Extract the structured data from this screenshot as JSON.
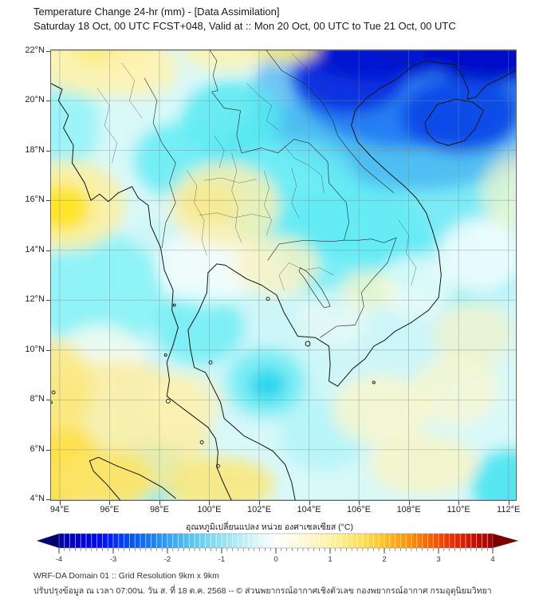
{
  "header": {
    "title": "Temperature Change 24-hr (mm) - [Data Assimilation]",
    "subtitle": "Saturday 18 Oct, 00 UTC FCST+048, Valid at :: Mon 20 Oct, 00 UTC to Tue 21 Oct, 00 UTC"
  },
  "footer": {
    "line1": "WRF-DA Domain 01 :: Grid Resolution 9km x 9km",
    "line2": "ปรับปรุงข้อมูล ณ เวลา 07:00น. วัน ส. ที่ 18 ต.ค. 2568 -- © ส่วนพยากรณ์อากาศเชิงตัวเลข กองพยากรณ์อากาศ กรมอุตุนิยมวิทยา"
  },
  "chart_data": {
    "type": "heatmap",
    "title": "Temperature Change 24-hr (mm) - [Data Assimilation]",
    "subtitle": "Saturday 18 Oct, 00 UTC FCST+048, Valid at :: Mon 20 Oct, 00 UTC to Tue 21 Oct, 00 UTC",
    "grid": true,
    "base_color": "#d8f8f9",
    "x_axis": {
      "label": "longitude",
      "suffix": "°E",
      "ticks": [
        94,
        96,
        98,
        100,
        102,
        104,
        106,
        108,
        110,
        112
      ],
      "range": [
        93.62,
        112.33
      ]
    },
    "y_axis": {
      "label": "latitude",
      "suffix": "°N",
      "ticks": [
        22,
        20,
        18,
        16,
        14,
        12,
        10,
        8,
        6,
        4
      ],
      "range": [
        3.95,
        22.05
      ]
    },
    "colorbar": {
      "label": "อุณหภูมิเปลี่ยนแปลง หน่วย องศาเซลเซียส (°C)",
      "ticks": [
        -4,
        -3,
        -2,
        -1,
        0,
        1,
        2,
        3,
        4
      ],
      "range": [
        -4,
        4
      ],
      "minor_step": 0.1,
      "extend": "both",
      "arrow_low_color": "#00006e",
      "arrow_high_color": "#7a0000",
      "stops": [
        {
          "v": -4.0,
          "c": "#0000a0"
        },
        {
          "v": -3.6,
          "c": "#0000d4"
        },
        {
          "v": -3.2,
          "c": "#0010fa"
        },
        {
          "v": -2.8,
          "c": "#0040ff"
        },
        {
          "v": -2.4,
          "c": "#1272f8"
        },
        {
          "v": -2.0,
          "c": "#30a0f2"
        },
        {
          "v": -1.6,
          "c": "#55c3ee"
        },
        {
          "v": -1.2,
          "c": "#7fd9f0"
        },
        {
          "v": -0.8,
          "c": "#a8e9f6"
        },
        {
          "v": -0.4,
          "c": "#d4f5fa"
        },
        {
          "v": 0.0,
          "c": "#ffffff"
        },
        {
          "v": 0.4,
          "c": "#fffae0"
        },
        {
          "v": 0.8,
          "c": "#fff5b8"
        },
        {
          "v": 1.2,
          "c": "#ffed8c"
        },
        {
          "v": 1.6,
          "c": "#ffdd55"
        },
        {
          "v": 2.0,
          "c": "#ffc024"
        },
        {
          "v": 2.4,
          "c": "#ff9708"
        },
        {
          "v": 2.8,
          "c": "#ff6600"
        },
        {
          "v": 3.2,
          "c": "#f23300"
        },
        {
          "v": 3.6,
          "c": "#cc1400"
        },
        {
          "v": 4.0,
          "c": "#a00000"
        }
      ]
    },
    "field_regions": [
      {
        "area": "domain-wide pale cooling wash",
        "lon": 103.0,
        "lat": 11.5,
        "rx_deg": 9.5,
        "ry_deg": 4.5,
        "color": "#c4f4f7",
        "opacity": 0.55,
        "value_c": -0.5
      },
      {
        "area": "Laos / central Vietnam cyan wash",
        "lon": 106.0,
        "lat": 17.0,
        "rx_deg": 6.0,
        "ry_deg": 3.3,
        "color": "#55e2f2",
        "opacity": 0.75,
        "value_c": -1.4
      },
      {
        "area": "South China Sea east wash",
        "lon": 109.8,
        "lat": 15.0,
        "rx_deg": 4.5,
        "ry_deg": 3.2,
        "color": "#7deef6",
        "opacity": 0.6,
        "value_c": -1.0
      },
      {
        "area": "Gulf of Tonkin blue halo",
        "lon": 108.2,
        "lat": 20.2,
        "rx_deg": 6.5,
        "ry_deg": 3.8,
        "color": "#39a8f0",
        "opacity": 0.65,
        "value_c": -2.3
      },
      {
        "area": "N Vietnam blue",
        "lon": 108.2,
        "lat": 20.8,
        "rx_deg": 4.8,
        "ry_deg": 2.7,
        "color": "#1e6ef2",
        "opacity": 0.8,
        "value_c": -2.8
      },
      {
        "area": "NW Vietnam dark blue",
        "lon": 105.6,
        "lat": 21.0,
        "rx_deg": 2.3,
        "ry_deg": 1.5,
        "color": "#0a2ce0",
        "opacity": 0.95,
        "value_c": -3.4
      },
      {
        "area": "N Vietnam / S China dark core",
        "lon": 106.8,
        "lat": 21.9,
        "rx_deg": 3.0,
        "ry_deg": 1.1,
        "color": "#0412d2",
        "opacity": 1,
        "value_c": -3.8
      },
      {
        "area": "top-right corner darkest core",
        "lon": 111.3,
        "lat": 22.0,
        "rx_deg": 2.7,
        "ry_deg": 1.3,
        "color": "#0008c8",
        "opacity": 1,
        "value_c": -4.0
      },
      {
        "area": "Hainan blue",
        "lon": 110.1,
        "lat": 19.4,
        "rx_deg": 2.4,
        "ry_deg": 1.5,
        "color": "#0a46e8",
        "opacity": 0.9,
        "value_c": -3.2
      },
      {
        "area": "N Laos cyan",
        "lon": 100.9,
        "lat": 19.2,
        "rx_deg": 2.0,
        "ry_deg": 1.6,
        "color": "#55e9f2",
        "opacity": 0.85,
        "value_c": -1.4
      },
      {
        "area": "NW Thailand cyan",
        "lon": 98.8,
        "lat": 17.6,
        "rx_deg": 1.8,
        "ry_deg": 1.5,
        "color": "#63ecf4",
        "opacity": 0.85,
        "value_c": -1.2
      },
      {
        "area": "NE Thailand cyan",
        "lon": 103.3,
        "lat": 16.2,
        "rx_deg": 2.8,
        "ry_deg": 2.2,
        "color": "#6ceef5",
        "opacity": 0.8,
        "value_c": -1.1
      },
      {
        "area": "S Laos / Cambodia cyan",
        "lon": 105.8,
        "lat": 14.2,
        "rx_deg": 3.0,
        "ry_deg": 2.5,
        "color": "#60ebf4",
        "opacity": 0.75,
        "value_c": -1.2
      },
      {
        "area": "Andaman Sea cyan",
        "lon": 95.6,
        "lat": 12.3,
        "rx_deg": 2.6,
        "ry_deg": 2.4,
        "color": "#82f1f7",
        "opacity": 0.8,
        "value_c": -0.9
      },
      {
        "area": "upper Gulf coast cyan",
        "lon": 99.6,
        "lat": 10.9,
        "rx_deg": 1.8,
        "ry_deg": 1.5,
        "color": "#70eef5",
        "opacity": 0.85,
        "value_c": -1.0
      },
      {
        "area": "Gulf of Thailand cyan halo",
        "lon": 102.3,
        "lat": 8.7,
        "rx_deg": 1.6,
        "ry_deg": 1.4,
        "color": "#6fecf5",
        "opacity": 0.85,
        "value_c": -1.1
      },
      {
        "area": "Gulf of Thailand bright spot",
        "lon": 102.35,
        "lat": 8.6,
        "rx_deg": 0.75,
        "ry_deg": 0.65,
        "color": "#28d5f0",
        "opacity": 0.95,
        "value_c": -1.8
      },
      {
        "area": "Rakhine coast cyan",
        "lon": 94.2,
        "lat": 19.0,
        "rx_deg": 1.4,
        "ry_deg": 1.8,
        "color": "#8df2f7",
        "opacity": 0.8,
        "value_c": -0.8
      },
      {
        "area": "N Sumatra cyan tongue",
        "lon": 97.7,
        "lat": 5.0,
        "rx_deg": 1.5,
        "ry_deg": 1.2,
        "color": "#55e9f3",
        "opacity": 0.9,
        "value_c": -1.4
      },
      {
        "area": "bottom-right corner cyan",
        "lon": 112.1,
        "lat": 4.6,
        "rx_deg": 1.6,
        "ry_deg": 1.4,
        "color": "#49e4f1",
        "opacity": 0.9,
        "value_c": -1.5
      },
      {
        "area": "SE pale cyan",
        "lon": 104.6,
        "lat": 6.6,
        "rx_deg": 1.8,
        "ry_deg": 1.4,
        "color": "#aef4f8",
        "opacity": 0.75,
        "value_c": -0.5
      },
      {
        "area": "central plain neutral",
        "lon": 99.9,
        "lat": 13.3,
        "rx_deg": 2.0,
        "ry_deg": 1.5,
        "color": "#ffffff",
        "opacity": 0.7,
        "value_c": 0
      },
      {
        "area": "sea east neutral",
        "lon": 110.9,
        "lat": 13.8,
        "rx_deg": 1.7,
        "ry_deg": 1.5,
        "color": "#ffffff",
        "opacity": 0.75,
        "value_c": 0
      },
      {
        "area": "S Vietnam coast neutral",
        "lon": 108.3,
        "lat": 12.6,
        "rx_deg": 1.5,
        "ry_deg": 1.2,
        "color": "#f2fcfa",
        "opacity": 0.75,
        "value_c": 0
      },
      {
        "area": "Andaman south neutral",
        "lon": 95.6,
        "lat": 9.6,
        "rx_deg": 1.8,
        "ry_deg": 1.4,
        "color": "#fdfdf0",
        "opacity": 0.8,
        "value_c": 0.1
      },
      {
        "area": "Mekong delta neutral",
        "lon": 105.0,
        "lat": 11.3,
        "rx_deg": 1.4,
        "ry_deg": 1.2,
        "color": "#eafaf6",
        "opacity": 0.7,
        "value_c": -0.2
      },
      {
        "area": "top-left pale yellow",
        "lon": 95.6,
        "lat": 21.6,
        "rx_deg": 2.8,
        "ry_deg": 1.4,
        "color": "#fdf2ac",
        "opacity": 0.9,
        "value_c": 0.8
      },
      {
        "area": "top-left yellow core",
        "lon": 96.2,
        "lat": 22.1,
        "rx_deg": 1.8,
        "ry_deg": 0.8,
        "color": "#fcec84",
        "opacity": 0.9,
        "value_c": 1.0
      },
      {
        "area": "Shan pale yellow",
        "lon": 97.3,
        "lat": 21.2,
        "rx_deg": 1.5,
        "ry_deg": 1.1,
        "color": "#fdf3b6",
        "opacity": 0.8,
        "value_c": 0.7
      },
      {
        "area": "top-centre pale yellow",
        "lon": 100.6,
        "lat": 22.0,
        "rx_deg": 1.7,
        "ry_deg": 0.8,
        "color": "#fdf3b0",
        "opacity": 0.85,
        "value_c": 0.7
      },
      {
        "area": "top yellow streak near blue",
        "lon": 103.1,
        "lat": 22.1,
        "rx_deg": 1.3,
        "ry_deg": 0.55,
        "color": "#fbe96e",
        "opacity": 0.9,
        "value_c": 1.3
      },
      {
        "area": "Bay of Bengal yellow halo",
        "lon": 94.3,
        "lat": 15.8,
        "rx_deg": 2.3,
        "ry_deg": 1.8,
        "color": "#fdf0a0",
        "opacity": 0.9,
        "value_c": 1.0
      },
      {
        "area": "Bay of Bengal yellow core",
        "lon": 94.1,
        "lat": 15.7,
        "rx_deg": 1.15,
        "ry_deg": 0.95,
        "color": "#ffe524",
        "opacity": 0.95,
        "value_c": 1.9
      },
      {
        "area": "central Thailand pale yellow",
        "lon": 100.6,
        "lat": 15.8,
        "rx_deg": 2.2,
        "ry_deg": 1.7,
        "color": "#fbf0b2",
        "opacity": 0.85,
        "value_c": 0.7
      },
      {
        "area": "central Thailand yellow core",
        "lon": 100.0,
        "lat": 15.9,
        "rx_deg": 1.2,
        "ry_deg": 0.9,
        "color": "#f8e88c",
        "opacity": 0.8,
        "value_c": 1.0
      },
      {
        "area": "NW Cambodia pale yellow",
        "lon": 102.7,
        "lat": 13.4,
        "rx_deg": 1.7,
        "ry_deg": 1.2,
        "color": "#fcf3c0",
        "opacity": 0.8,
        "value_c": 0.5
      },
      {
        "area": "SW quadrant yellow wash",
        "lon": 96.2,
        "lat": 6.8,
        "rx_deg": 3.8,
        "ry_deg": 2.8,
        "color": "#fbeda0",
        "opacity": 0.85,
        "value_c": 1.0
      },
      {
        "area": "bottom-left corner strong yellow",
        "lon": 93.8,
        "lat": 5.4,
        "rx_deg": 1.8,
        "ry_deg": 1.8,
        "color": "#ffdf46",
        "opacity": 0.95,
        "value_c": 2.1
      },
      {
        "area": "left edge yellow 8.5N",
        "lon": 93.8,
        "lat": 8.5,
        "rx_deg": 1.5,
        "ry_deg": 1.9,
        "color": "#fce77c",
        "opacity": 0.85,
        "value_c": 1.4
      },
      {
        "area": "bottom yellow 96E",
        "lon": 95.8,
        "lat": 4.8,
        "rx_deg": 2.0,
        "ry_deg": 1.2,
        "color": "#fbe467",
        "opacity": 0.9,
        "value_c": 1.6
      },
      {
        "area": "bottom yellow 100E",
        "lon": 100.4,
        "lat": 4.6,
        "rx_deg": 2.2,
        "ry_deg": 1.1,
        "color": "#fae87e",
        "opacity": 0.9,
        "value_c": 1.4
      },
      {
        "area": "peninsula pale yellow",
        "lon": 98.9,
        "lat": 7.9,
        "rx_deg": 1.6,
        "ry_deg": 1.2,
        "color": "#fdf2b4",
        "opacity": 0.75,
        "value_c": 0.7
      },
      {
        "area": "SE sea pale yellow 1",
        "lon": 106.9,
        "lat": 7.6,
        "rx_deg": 2.0,
        "ry_deg": 1.4,
        "color": "#fdf6c8",
        "opacity": 0.75,
        "value_c": 0.4
      },
      {
        "area": "SE sea pale yellow 2",
        "lon": 108.6,
        "lat": 5.4,
        "rx_deg": 2.2,
        "ry_deg": 1.2,
        "color": "#fcf4c0",
        "opacity": 0.75,
        "value_c": 0.5
      },
      {
        "area": "SE sea pale yellow 3",
        "lon": 109.9,
        "lat": 8.4,
        "rx_deg": 1.7,
        "ry_deg": 1.4,
        "color": "#fdf7cc",
        "opacity": 0.7,
        "value_c": 0.4
      },
      {
        "area": "S Vietnam small pale yellow",
        "lon": 106.4,
        "lat": 12.4,
        "rx_deg": 1.1,
        "ry_deg": 0.8,
        "color": "#fdf6c8",
        "opacity": 0.75,
        "value_c": 0.4
      },
      {
        "area": "right edge pale yellow",
        "lon": 112.2,
        "lat": 16.3,
        "rx_deg": 1.3,
        "ry_deg": 1.5,
        "color": "#fdf6c8",
        "opacity": 0.65,
        "value_c": 0.4
      },
      {
        "area": "sea pale yellow 110E",
        "lon": 110.6,
        "lat": 10.6,
        "rx_deg": 1.6,
        "ry_deg": 1.3,
        "color": "#fbf3c0",
        "opacity": 0.6,
        "value_c": 0.4
      }
    ]
  }
}
